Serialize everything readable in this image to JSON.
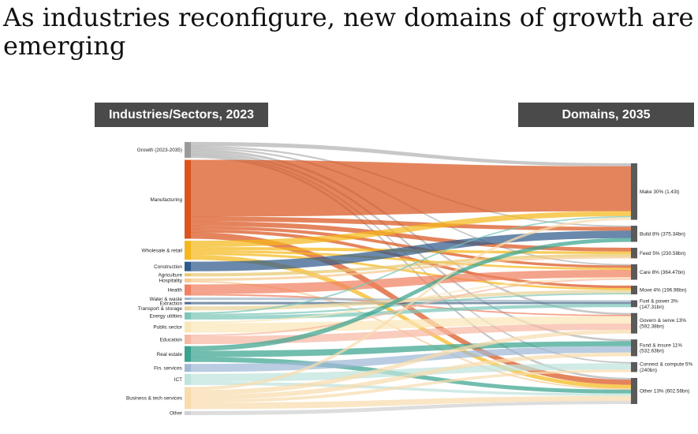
{
  "title": "As industries reconfigure, new domains of growth are emerging",
  "header_left": "Industries/Sectors, 2023",
  "header_right": "Domains, 2035",
  "chart_data": {
    "type": "sankey",
    "source_heading": "Industries/Sectors, 2023",
    "target_heading": "Domains, 2035",
    "sources": [
      {
        "name": "Growth (2023-2035)",
        "label": "Growth (2023-2035)",
        "color": "#9a9a9a",
        "weight": 20
      },
      {
        "name": "Manufacturing",
        "label": "Manufacturing",
        "color": "#d9541e",
        "weight": 100
      },
      {
        "name": "Wholesale & retail",
        "label": "Wholesale & retail",
        "color": "#f5b81c",
        "weight": 24
      },
      {
        "name": "Construction",
        "label": "Construction",
        "color": "#2f5a8a",
        "weight": 12
      },
      {
        "name": "Agriculture",
        "label": "Agriculture",
        "color": "#e8c870",
        "weight": 4
      },
      {
        "name": "Hospitality",
        "label": "Hospitality",
        "color": "#f6c98f",
        "weight": 5
      },
      {
        "name": "Health",
        "label": "Health",
        "color": "#f08060",
        "weight": 14
      },
      {
        "name": "Water & waste",
        "label": "Water & waste",
        "color": "#9fb6c8",
        "weight": 3
      },
      {
        "name": "Extraction",
        "label": "Extraction",
        "color": "#4c6c8c",
        "weight": 3
      },
      {
        "name": "Transport & storage",
        "label": "Transport & storage",
        "color": "#e9d39a",
        "weight": 5
      },
      {
        "name": "Energy utilities",
        "label": "Energy utilities",
        "color": "#7cc6b8",
        "weight": 9
      },
      {
        "name": "Public sector",
        "label": "Public sector",
        "color": "#fbe6b8",
        "weight": 14
      },
      {
        "name": "Education",
        "label": "Education",
        "color": "#f6b8a3",
        "weight": 12
      },
      {
        "name": "Real estate",
        "label": "Real estate",
        "color": "#3aa38f",
        "weight": 20
      },
      {
        "name": "Fin. services",
        "label": "Fin. services",
        "color": "#9fb8d6",
        "weight": 10
      },
      {
        "name": "ICT",
        "label": "ICT",
        "color": "#bfe3dd",
        "weight": 14
      },
      {
        "name": "Business & tech services",
        "label": "Business & tech services",
        "color": "#f8dcae",
        "weight": 28
      },
      {
        "name": "Other",
        "label": "Other",
        "color": "#d0d0d0",
        "weight": 5
      }
    ],
    "targets": [
      {
        "name": "Make",
        "label": "Make 30% (1.43t)",
        "label_lines": [
          "Make 30% (1.43t)"
        ],
        "share_pct": 30,
        "value": "1.43t"
      },
      {
        "name": "Build",
        "label": "Build 8% (375.34bn)",
        "label_lines": [
          "Build 8% (375.34bn)"
        ],
        "share_pct": 8,
        "value": "375.34bn"
      },
      {
        "name": "Feed",
        "label": "Feed 5% (230.58bn)",
        "label_lines": [
          "Feed 5% (230.58bn)"
        ],
        "share_pct": 5,
        "value": "230.58bn"
      },
      {
        "name": "Care",
        "label": "Care 8% (364.47bn)",
        "label_lines": [
          "Care 8% (364.47bn)"
        ],
        "share_pct": 8,
        "value": "364.47bn"
      },
      {
        "name": "Move",
        "label": "Move 4% (196.96bn)",
        "label_lines": [
          "Move 4% (196.96bn)"
        ],
        "share_pct": 4,
        "value": "196.96bn"
      },
      {
        "name": "Fuel & power",
        "label": "Fuel & power 3% (147.31bn)",
        "label_lines": [
          "Fuel & power 3%",
          "(147.31bn)"
        ],
        "share_pct": 3,
        "value": "147.31bn"
      },
      {
        "name": "Govern & serve",
        "label": "Govern & serve 13% (592.38bn)",
        "label_lines": [
          "Govern & serve 13%",
          "(592.38bn)"
        ],
        "share_pct": 13,
        "value": "592.38bn"
      },
      {
        "name": "Fund & insure",
        "label": "Fund & insure 11% (532.63bn)",
        "label_lines": [
          "Fund & insure 11%",
          "(532.63bn)"
        ],
        "share_pct": 11,
        "value": "532.63bn"
      },
      {
        "name": "Connect & compute",
        "label": "Connect & compute 5% (240bn)",
        "label_lines": [
          "Connect & compute 5%",
          "(240bn)"
        ],
        "share_pct": 5,
        "value": "240bn"
      },
      {
        "name": "Other",
        "label": "Other 13% (602.56bn)",
        "label_lines": [
          "Other 13% (602.56bn)"
        ],
        "share_pct": 13,
        "value": "602.56bn"
      }
    ],
    "flows": [
      {
        "source": "Growth (2023-2035)",
        "target": "Make",
        "value": 5
      },
      {
        "source": "Growth (2023-2035)",
        "target": "Build",
        "value": 2
      },
      {
        "source": "Growth (2023-2035)",
        "target": "Care",
        "value": 2
      },
      {
        "source": "Growth (2023-2035)",
        "target": "Govern & serve",
        "value": 3
      },
      {
        "source": "Growth (2023-2035)",
        "target": "Fund & insure",
        "value": 3
      },
      {
        "source": "Growth (2023-2035)",
        "target": "Connect & compute",
        "value": 2
      },
      {
        "source": "Growth (2023-2035)",
        "target": "Other",
        "value": 3
      },
      {
        "source": "Manufacturing",
        "target": "Make",
        "value": 72
      },
      {
        "source": "Manufacturing",
        "target": "Build",
        "value": 6
      },
      {
        "source": "Manufacturing",
        "target": "Feed",
        "value": 6
      },
      {
        "source": "Manufacturing",
        "target": "Care",
        "value": 4
      },
      {
        "source": "Manufacturing",
        "target": "Move",
        "value": 4
      },
      {
        "source": "Manufacturing",
        "target": "Other",
        "value": 8
      },
      {
        "source": "Wholesale & retail",
        "target": "Make",
        "value": 8
      },
      {
        "source": "Wholesale & retail",
        "target": "Feed",
        "value": 4
      },
      {
        "source": "Wholesale & retail",
        "target": "Care",
        "value": 3
      },
      {
        "source": "Wholesale & retail",
        "target": "Move",
        "value": 3
      },
      {
        "source": "Wholesale & retail",
        "target": "Other",
        "value": 6
      },
      {
        "source": "Construction",
        "target": "Build",
        "value": 12
      },
      {
        "source": "Agriculture",
        "target": "Feed",
        "value": 4
      },
      {
        "source": "Hospitality",
        "target": "Feed",
        "value": 3
      },
      {
        "source": "Hospitality",
        "target": "Other",
        "value": 2
      },
      {
        "source": "Health",
        "target": "Care",
        "value": 12
      },
      {
        "source": "Health",
        "target": "Govern & serve",
        "value": 2
      },
      {
        "source": "Water & waste",
        "target": "Fuel & power",
        "value": 3
      },
      {
        "source": "Extraction",
        "target": "Fuel & power",
        "value": 3
      },
      {
        "source": "Transport & storage",
        "target": "Move",
        "value": 5
      },
      {
        "source": "Energy utilities",
        "target": "Fuel & power",
        "value": 5
      },
      {
        "source": "Energy utilities",
        "target": "Make",
        "value": 2
      },
      {
        "source": "Energy utilities",
        "target": "Move",
        "value": 2
      },
      {
        "source": "Public sector",
        "target": "Govern & serve",
        "value": 12
      },
      {
        "source": "Public sector",
        "target": "Care",
        "value": 2
      },
      {
        "source": "Education",
        "target": "Govern & serve",
        "value": 10
      },
      {
        "source": "Education",
        "target": "Care",
        "value": 2
      },
      {
        "source": "Real estate",
        "target": "Build",
        "value": 6
      },
      {
        "source": "Real estate",
        "target": "Fund & insure",
        "value": 8
      },
      {
        "source": "Real estate",
        "target": "Other",
        "value": 6
      },
      {
        "source": "Fin. services",
        "target": "Fund & insure",
        "value": 10
      },
      {
        "source": "ICT",
        "target": "Connect & compute",
        "value": 10
      },
      {
        "source": "ICT",
        "target": "Other",
        "value": 4
      },
      {
        "source": "Business & tech services",
        "target": "Govern & serve",
        "value": 6
      },
      {
        "source": "Business & tech services",
        "target": "Connect & compute",
        "value": 4
      },
      {
        "source": "Business & tech services",
        "target": "Other",
        "value": 8
      },
      {
        "source": "Business & tech services",
        "target": "Make",
        "value": 4
      },
      {
        "source": "Business & tech services",
        "target": "Fund & insure",
        "value": 6
      },
      {
        "source": "Other",
        "target": "Other",
        "value": 5
      }
    ]
  }
}
